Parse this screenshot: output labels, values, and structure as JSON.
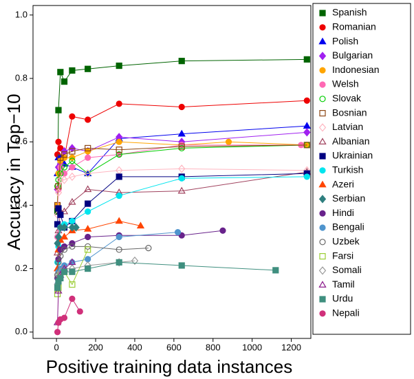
{
  "chart_data": {
    "type": "line",
    "y_label": "Accuracy in Top−10",
    "x_label": "Positive training data instances",
    "xlim": [
      -120,
      1300
    ],
    "ylim": [
      -0.02,
      1.03
    ],
    "xticks": [
      0,
      200,
      400,
      600,
      800,
      1000,
      1200
    ],
    "yticks": [
      {
        "value": 0,
        "label": "0.0"
      },
      {
        "value": 0.2,
        "label": "0.2"
      },
      {
        "value": 0.4,
        "label": "0.4"
      },
      {
        "value": 0.6,
        "label": "0.6"
      },
      {
        "value": 0.8,
        "label": "0.8"
      },
      {
        "value": 1,
        "label": "1.0"
      }
    ],
    "legend": "outside-right",
    "series": [
      {
        "name": "Spanish",
        "color": "#006400",
        "marker": "square",
        "filled": true,
        "x": [
          5,
          10,
          20,
          40,
          80,
          160,
          320,
          640,
          1280
        ],
        "values": [
          0.38,
          0.7,
          0.82,
          0.79,
          0.825,
          0.83,
          0.84,
          0.855,
          0.86
        ]
      },
      {
        "name": "Romanian",
        "color": "#ee0000",
        "marker": "circle",
        "filled": true,
        "x": [
          5,
          10,
          20,
          40,
          80,
          160,
          320,
          640,
          1280
        ],
        "values": [
          0.56,
          0.6,
          0.58,
          0.55,
          0.68,
          0.67,
          0.72,
          0.71,
          0.73
        ]
      },
      {
        "name": "Polish",
        "color": "#0000ee",
        "marker": "triangle",
        "filled": true,
        "x": [
          5,
          10,
          20,
          40,
          80,
          160,
          320,
          640,
          1280
        ],
        "values": [
          0.5,
          0.55,
          0.55,
          0.53,
          0.52,
          0.5,
          0.61,
          0.625,
          0.65
        ]
      },
      {
        "name": "Bulgarian",
        "color": "#a020f0",
        "marker": "diamond",
        "filled": true,
        "x": [
          5,
          10,
          20,
          40,
          80,
          160,
          320,
          640,
          1280
        ],
        "values": [
          0.45,
          0.52,
          0.53,
          0.57,
          0.58,
          0.57,
          0.615,
          0.6,
          0.63
        ]
      },
      {
        "name": "Indonesian",
        "color": "#ffa500",
        "marker": "circle",
        "filled": true,
        "x": [
          5,
          10,
          20,
          40,
          80,
          160,
          320,
          640,
          880,
          1280
        ],
        "values": [
          0.4,
          0.5,
          0.54,
          0.55,
          0.55,
          0.57,
          0.6,
          0.59,
          0.6,
          0.59
        ]
      },
      {
        "name": "Welsh",
        "color": "#ff69b4",
        "marker": "circle",
        "filled": true,
        "x": [
          5,
          10,
          20,
          40,
          80,
          160,
          320,
          640,
          1250
        ],
        "values": [
          0.3,
          0.45,
          0.52,
          0.5,
          0.52,
          0.55,
          0.56,
          0.59,
          0.59
        ]
      },
      {
        "name": "Slovak",
        "color": "#00cd00",
        "marker": "circle",
        "filled": false,
        "x": [
          5,
          10,
          20,
          40,
          80,
          160,
          320,
          640,
          1280
        ],
        "values": [
          0.46,
          0.48,
          0.5,
          0.52,
          0.54,
          0.5,
          0.56,
          0.58,
          0.59
        ]
      },
      {
        "name": "Bosnian",
        "color": "#8b4513",
        "marker": "square",
        "filled": false,
        "x": [
          5,
          10,
          20,
          40,
          80,
          160,
          320,
          640,
          1280
        ],
        "values": [
          0.4,
          0.46,
          0.55,
          0.56,
          0.57,
          0.58,
          0.575,
          0.585,
          0.59
        ]
      },
      {
        "name": "Latvian",
        "color": "#ffb6c1",
        "marker": "diamond",
        "filled": false,
        "x": [
          5,
          10,
          20,
          40,
          80,
          160,
          320,
          640,
          1280
        ],
        "values": [
          0.37,
          0.44,
          0.48,
          0.48,
          0.49,
          0.5,
          0.51,
          0.515,
          0.51
        ]
      },
      {
        "name": "Albanian",
        "color": "#a0425e",
        "marker": "triangle",
        "filled": false,
        "x": [
          5,
          10,
          20,
          40,
          80,
          160,
          320,
          640,
          1280
        ],
        "values": [
          0.25,
          0.32,
          0.38,
          0.38,
          0.41,
          0.45,
          0.44,
          0.445,
          0.505
        ]
      },
      {
        "name": "Ukrainian",
        "color": "#000080",
        "marker": "square",
        "filled": true,
        "x": [
          5,
          10,
          20,
          40,
          80,
          160,
          320,
          640,
          1280
        ],
        "values": [
          0.34,
          0.39,
          0.37,
          0.33,
          0.35,
          0.405,
          0.49,
          0.49,
          0.5
        ]
      },
      {
        "name": "Turkish",
        "color": "#00e5ee",
        "marker": "circle",
        "filled": true,
        "x": [
          5,
          10,
          20,
          40,
          80,
          160,
          320,
          640,
          1280
        ],
        "values": [
          0.22,
          0.27,
          0.33,
          0.34,
          0.35,
          0.38,
          0.43,
          0.485,
          0.49
        ]
      },
      {
        "name": "Azeri",
        "color": "#ff4500",
        "marker": "triangle",
        "filled": true,
        "x": [
          5,
          10,
          20,
          40,
          80,
          160,
          320,
          430
        ],
        "values": [
          0.2,
          0.26,
          0.29,
          0.3,
          0.32,
          0.325,
          0.35,
          0.335
        ]
      },
      {
        "name": "Serbian",
        "color": "#2f7f7f",
        "marker": "diamond",
        "filled": true,
        "x": [
          5,
          10,
          20,
          40,
          80,
          100
        ],
        "values": [
          0.28,
          0.3,
          0.33,
          0.33,
          0.33,
          0.33
        ]
      },
      {
        "name": "Hindi",
        "color": "#68228b",
        "marker": "circle",
        "filled": true,
        "x": [
          5,
          10,
          20,
          40,
          80,
          160,
          320,
          640,
          850
        ],
        "values": [
          0.17,
          0.23,
          0.26,
          0.27,
          0.28,
          0.3,
          0.305,
          0.305,
          0.32
        ]
      },
      {
        "name": "Bengali",
        "color": "#4f94cd",
        "marker": "circle",
        "filled": true,
        "x": [
          5,
          10,
          20,
          40,
          80,
          160,
          320,
          620
        ],
        "values": [
          0.15,
          0.19,
          0.2,
          0.21,
          0.22,
          0.23,
          0.3,
          0.315
        ]
      },
      {
        "name": "Uzbek",
        "color": "#666666",
        "marker": "circle",
        "filled": false,
        "x": [
          5,
          10,
          20,
          40,
          80,
          160,
          320,
          470
        ],
        "values": [
          0.18,
          0.22,
          0.24,
          0.26,
          0.27,
          0.27,
          0.26,
          0.265
        ]
      },
      {
        "name": "Farsi",
        "color": "#9acd32",
        "marker": "square",
        "filled": false,
        "x": [
          5,
          10,
          20,
          40,
          80,
          160
        ],
        "values": [
          0.12,
          0.14,
          0.18,
          0.19,
          0.15,
          0.26
        ]
      },
      {
        "name": "Somali",
        "color": "#999999",
        "marker": "diamond",
        "filled": false,
        "x": [
          5,
          10,
          20,
          40,
          80,
          160,
          320,
          400
        ],
        "values": [
          0.15,
          0.18,
          0.19,
          0.2,
          0.2,
          0.21,
          0.22,
          0.225
        ]
      },
      {
        "name": "Tamil",
        "color": "#8b1a8b",
        "marker": "triangle",
        "filled": false,
        "x": [
          5,
          10,
          20,
          40,
          80
        ],
        "values": [
          0.03,
          0.13,
          0.18,
          0.2,
          0.22
        ]
      },
      {
        "name": "Urdu",
        "color": "#3f8f7f",
        "marker": "square",
        "filled": true,
        "x": [
          5,
          10,
          20,
          40,
          80,
          160,
          320,
          640,
          1120
        ],
        "values": [
          0.14,
          0.16,
          0.17,
          0.19,
          0.19,
          0.2,
          0.22,
          0.21,
          0.195
        ]
      },
      {
        "name": "Nepali",
        "color": "#d0307a",
        "marker": "circle",
        "filled": true,
        "x": [
          5,
          10,
          20,
          40,
          80,
          120
        ],
        "values": [
          0.0,
          0.03,
          0.04,
          0.045,
          0.105,
          0.065
        ]
      }
    ]
  }
}
